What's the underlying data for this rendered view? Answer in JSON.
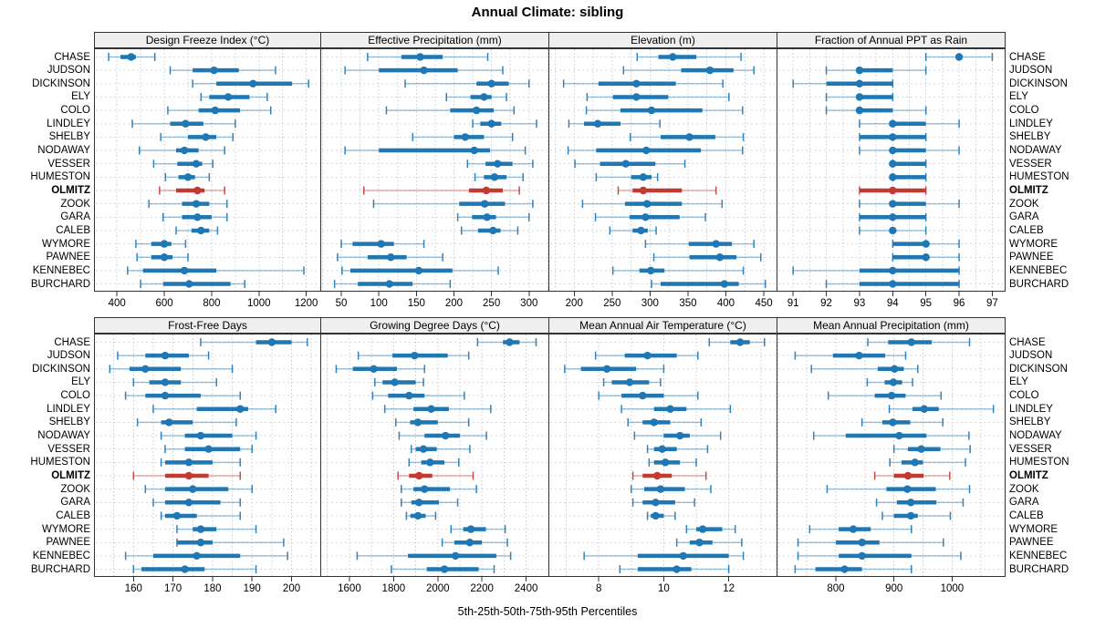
{
  "title": "Annual Climate: sibling",
  "footer": "5th-25th-50th-75th-95th Percentiles",
  "percentile_labels": [
    "5th",
    "25th",
    "50th",
    "75th",
    "95th"
  ],
  "highlight_station": "OLMITZ",
  "colors": {
    "series_blue": "#1f77b4",
    "highlight_red": "#c23b33",
    "strip_bg": "#efefef",
    "panel_border": "#333333",
    "grid_vertical": "#c3ccd6",
    "grid_horizontal": "#d9d9d9"
  },
  "stations": [
    "CHASE",
    "JUDSON",
    "DICKINSON",
    "ELY",
    "COLO",
    "LINDLEY",
    "SHELBY",
    "NODAWAY",
    "VESSER",
    "HUMESTON",
    "OLMITZ",
    "ZOOK",
    "GARA",
    "CALEB",
    "WYMORE",
    "PAWNEE",
    "KENNEBEC",
    "BURCHARD"
  ],
  "chart_data": {
    "type": "dotplot-percentiles",
    "layout": {
      "rows": 2,
      "cols": 4,
      "legend": "none",
      "grid": "dotted"
    },
    "note": "values per station are [p5,p25,p50,p75,p95]; station order matches stations list",
    "panels": [
      {
        "title": "Design Freeze Index (°C)",
        "row": 0,
        "col": 0,
        "xlim": [
          303,
          1263
        ],
        "ticks": [
          400,
          600,
          800,
          1000,
          1200
        ],
        "grid_step": 100,
        "values": [
          [
            365,
            415,
            460,
            480,
            560
          ],
          [
            625,
            720,
            810,
            915,
            1070
          ],
          [
            720,
            820,
            975,
            1140,
            1210
          ],
          [
            755,
            790,
            870,
            960,
            1035
          ],
          [
            615,
            745,
            815,
            920,
            1050
          ],
          [
            465,
            625,
            690,
            765,
            900
          ],
          [
            585,
            700,
            775,
            820,
            890
          ],
          [
            495,
            650,
            685,
            745,
            855
          ],
          [
            555,
            655,
            735,
            760,
            805
          ],
          [
            605,
            660,
            700,
            730,
            790
          ],
          [
            580,
            650,
            740,
            770,
            855
          ],
          [
            535,
            675,
            735,
            790,
            865
          ],
          [
            595,
            675,
            740,
            800,
            865
          ],
          [
            650,
            715,
            755,
            790,
            825
          ],
          [
            480,
            545,
            600,
            630,
            690
          ],
          [
            485,
            545,
            600,
            635,
            700
          ],
          [
            445,
            510,
            685,
            820,
            1190
          ],
          [
            500,
            595,
            705,
            880,
            940
          ]
        ]
      },
      {
        "title": "Effective Precipitation (mm)",
        "row": 0,
        "col": 1,
        "xlim": [
          22,
          327
        ],
        "ticks": [
          50,
          100,
          150,
          200,
          250,
          300
        ],
        "grid_step": 25,
        "values": [
          [
            85,
            130,
            155,
            185,
            245
          ],
          [
            55,
            100,
            160,
            205,
            265
          ],
          [
            135,
            230,
            250,
            273,
            300
          ],
          [
            190,
            222,
            240,
            250,
            270
          ],
          [
            110,
            195,
            230,
            253,
            280
          ],
          [
            225,
            235,
            250,
            263,
            310
          ],
          [
            145,
            200,
            215,
            240,
            278
          ],
          [
            55,
            100,
            227,
            248,
            295
          ],
          [
            218,
            242,
            258,
            278,
            305
          ],
          [
            228,
            240,
            254,
            270,
            292
          ],
          [
            80,
            220,
            243,
            265,
            287
          ],
          [
            93,
            207,
            241,
            268,
            305
          ],
          [
            205,
            224,
            244,
            256,
            300
          ],
          [
            210,
            232,
            252,
            262,
            285
          ],
          [
            50,
            65,
            103,
            120,
            160
          ],
          [
            45,
            85,
            116,
            137,
            185
          ],
          [
            51,
            62,
            153,
            198,
            259
          ],
          [
            41,
            72,
            114,
            145,
            195
          ]
        ]
      },
      {
        "title": "Elevation (m)",
        "row": 0,
        "col": 2,
        "xlim": [
          166,
          468
        ],
        "ticks": [
          200,
          250,
          300,
          350,
          400,
          450
        ],
        "grid_step": 25,
        "values": [
          [
            283,
            311,
            330,
            361,
            420
          ],
          [
            265,
            341,
            379,
            410,
            437
          ],
          [
            186,
            232,
            282,
            334,
            396
          ],
          [
            217,
            251,
            282,
            324,
            404
          ],
          [
            216,
            261,
            302,
            369,
            422
          ],
          [
            193,
            213,
            231,
            261,
            313
          ],
          [
            274,
            314,
            352,
            386,
            423
          ],
          [
            192,
            229,
            295,
            367,
            422
          ],
          [
            201,
            234,
            268,
            307,
            346
          ],
          [
            229,
            275,
            291,
            302,
            310
          ],
          [
            258,
            277,
            291,
            342,
            387
          ],
          [
            211,
            267,
            296,
            342,
            395
          ],
          [
            228,
            273,
            294,
            339,
            373
          ],
          [
            247,
            277,
            288,
            297,
            308
          ],
          [
            294,
            351,
            387,
            408,
            437
          ],
          [
            305,
            352,
            392,
            414,
            446
          ],
          [
            251,
            286,
            301,
            319,
            423
          ],
          [
            302,
            314,
            398,
            417,
            452
          ]
        ]
      },
      {
        "title": "Fraction of Annual PPT as Rain",
        "row": 0,
        "col": 3,
        "xlim": [
          90.5,
          97.4
        ],
        "ticks": [
          91,
          92,
          93,
          94,
          95,
          96,
          97
        ],
        "grid_step": 0.5,
        "values": [
          [
            95,
            96,
            96,
            96,
            97
          ],
          [
            92,
            93,
            93,
            94,
            95
          ],
          [
            91,
            92,
            93,
            94,
            94
          ],
          [
            92,
            93,
            93,
            94,
            94
          ],
          [
            92,
            93,
            93,
            94,
            95
          ],
          [
            93,
            94,
            94,
            95,
            96
          ],
          [
            93,
            93,
            94,
            95,
            95
          ],
          [
            93,
            94,
            94,
            95,
            96
          ],
          [
            94,
            94,
            94,
            95,
            95
          ],
          [
            94,
            94,
            94,
            95,
            95
          ],
          [
            93,
            93,
            94,
            95,
            95
          ],
          [
            93,
            94,
            94,
            95,
            96
          ],
          [
            93,
            93,
            94,
            95,
            95
          ],
          [
            93,
            94,
            94,
            94,
            95
          ],
          [
            94,
            94,
            95,
            95,
            96
          ],
          [
            94,
            94,
            95,
            95,
            96
          ],
          [
            91,
            93,
            94,
            96,
            96
          ],
          [
            92,
            93,
            94,
            96,
            96
          ]
        ]
      },
      {
        "title": "Frost-Free Days",
        "row": 1,
        "col": 0,
        "xlim": [
          150,
          207.5
        ],
        "ticks": [
          160,
          170,
          180,
          190,
          200
        ],
        "grid_step": 5,
        "values": [
          [
            177,
            191,
            195,
            200,
            204
          ],
          [
            156,
            163,
            168,
            174,
            179
          ],
          [
            154,
            159,
            163,
            172,
            185
          ],
          [
            160,
            164,
            168,
            172,
            181
          ],
          [
            158,
            163,
            168,
            177,
            187
          ],
          [
            165,
            176,
            187,
            189,
            196
          ],
          [
            161,
            167,
            169,
            175,
            186
          ],
          [
            167,
            173,
            177,
            185,
            191
          ],
          [
            168,
            173,
            179,
            187,
            190
          ],
          [
            167,
            168,
            174,
            180,
            187
          ],
          [
            160,
            168,
            174,
            179,
            187
          ],
          [
            163,
            168,
            175,
            184,
            190
          ],
          [
            165,
            168,
            174,
            182,
            187
          ],
          [
            167,
            168,
            171,
            176,
            187
          ],
          [
            171,
            175,
            177,
            181,
            191
          ],
          [
            171,
            171,
            177,
            180,
            198
          ],
          [
            158,
            165,
            176,
            187,
            199
          ],
          [
            160,
            162,
            173,
            178,
            191
          ]
        ]
      },
      {
        "title": "Growing Degree Days (°C)",
        "row": 1,
        "col": 1,
        "xlim": [
          1468,
          2505
        ],
        "ticks": [
          1600,
          1800,
          2000,
          2200,
          2400
        ],
        "grid_step": 100,
        "values": [
          [
            2180,
            2295,
            2325,
            2370,
            2445
          ],
          [
            1640,
            1795,
            1895,
            2045,
            2140
          ],
          [
            1540,
            1615,
            1710,
            1815,
            1940
          ],
          [
            1715,
            1750,
            1805,
            1900,
            1935
          ],
          [
            1705,
            1775,
            1870,
            1940,
            2120
          ],
          [
            1760,
            1890,
            1970,
            2050,
            2240
          ],
          [
            1810,
            1875,
            1910,
            2000,
            2140
          ],
          [
            1825,
            1940,
            2035,
            2100,
            2220
          ],
          [
            1880,
            1900,
            1935,
            1995,
            2145
          ],
          [
            1870,
            1925,
            1965,
            2030,
            2095
          ],
          [
            1820,
            1870,
            1915,
            1975,
            2160
          ],
          [
            1835,
            1890,
            1940,
            2055,
            2175
          ],
          [
            1835,
            1880,
            1915,
            2005,
            2090
          ],
          [
            1858,
            1876,
            1910,
            1945,
            1990
          ],
          [
            2060,
            2115,
            2150,
            2218,
            2305
          ],
          [
            2020,
            2075,
            2145,
            2200,
            2315
          ],
          [
            1635,
            1865,
            2080,
            2265,
            2330
          ],
          [
            1790,
            1950,
            2030,
            2185,
            2255
          ]
        ]
      },
      {
        "title": "Mean Annual Air Temperature (°C)",
        "row": 1,
        "col": 2,
        "xlim": [
          6.45,
          13.5
        ],
        "ticks": [
          8,
          10,
          12
        ],
        "grid_step": 1,
        "values": [
          [
            11.4,
            12.05,
            12.35,
            12.65,
            13.1
          ],
          [
            7.9,
            8.8,
            9.5,
            10.4,
            11.05
          ],
          [
            6.95,
            7.45,
            8.25,
            9.15,
            10.0
          ],
          [
            8.15,
            8.4,
            8.95,
            9.55,
            9.9
          ],
          [
            8.0,
            8.7,
            9.35,
            10.0,
            11.05
          ],
          [
            8.7,
            9.7,
            10.2,
            10.7,
            12.05
          ],
          [
            8.9,
            9.35,
            9.7,
            10.2,
            11.15
          ],
          [
            9.1,
            10.0,
            10.5,
            10.8,
            11.75
          ],
          [
            9.5,
            9.7,
            9.95,
            10.4,
            11.35
          ],
          [
            9.55,
            9.7,
            10.05,
            10.5,
            11.0
          ],
          [
            9.05,
            9.35,
            9.8,
            10.25,
            11.3
          ],
          [
            9.0,
            9.4,
            9.9,
            10.65,
            11.45
          ],
          [
            9.05,
            9.35,
            9.75,
            10.35,
            10.95
          ],
          [
            9.5,
            9.6,
            9.75,
            10.0,
            10.35
          ],
          [
            10.7,
            11.0,
            11.2,
            11.8,
            12.2
          ],
          [
            10.4,
            10.8,
            11.1,
            11.5,
            12.4
          ],
          [
            7.55,
            9.2,
            10.6,
            12.0,
            12.45
          ],
          [
            8.65,
            9.2,
            10.4,
            10.85,
            12.0
          ]
        ]
      },
      {
        "title": "Mean Annual Precipitation (mm)",
        "row": 1,
        "col": 3,
        "xlim": [
          698,
          1092
        ],
        "ticks": [
          800,
          900,
          1000
        ],
        "grid_step": 50,
        "values": [
          [
            855,
            890,
            930,
            965,
            1030
          ],
          [
            730,
            795,
            840,
            885,
            920
          ],
          [
            758,
            872,
            901,
            917,
            941
          ],
          [
            854,
            884,
            899,
            914,
            932
          ],
          [
            787,
            867,
            896,
            920,
            981
          ],
          [
            892,
            932,
            952,
            977,
            1071
          ],
          [
            845,
            880,
            898,
            928,
            984
          ],
          [
            762,
            817,
            909,
            956,
            1029
          ],
          [
            900,
            924,
            947,
            980,
            1031
          ],
          [
            893,
            913,
            936,
            950,
            1023
          ],
          [
            867,
            900,
            924,
            951,
            996
          ],
          [
            785,
            887,
            923,
            972,
            1030
          ],
          [
            870,
            905,
            929,
            973,
            1019
          ],
          [
            880,
            900,
            929,
            941,
            997
          ],
          [
            755,
            805,
            830,
            860,
            930
          ],
          [
            735,
            800,
            845,
            875,
            985
          ],
          [
            735,
            805,
            845,
            930,
            1015
          ],
          [
            730,
            765,
            815,
            845,
            930
          ]
        ]
      }
    ]
  }
}
